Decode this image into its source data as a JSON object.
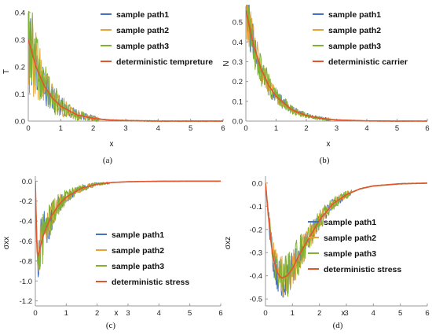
{
  "colors": {
    "sample_path1": "#4472c4",
    "sample_path2": "#e8a23a",
    "sample_path3": "#7fb133",
    "deterministic": "#e5542c",
    "axis": "#999999"
  },
  "chart_data": [
    {
      "type": "line",
      "caption": "(a)",
      "xlabel": "x",
      "ylabel": "T",
      "xlim": [
        0,
        6
      ],
      "ylim": [
        0,
        0.4
      ],
      "xticks": [
        "0",
        "1",
        "2",
        "3",
        "4",
        "5",
        "6"
      ],
      "yticks": [
        "0.0",
        "0.1",
        "0.2",
        "0.3",
        "0.4"
      ],
      "legend_position": "top-right",
      "deterministic": {
        "name": "deterministic tempreture",
        "a": 0.3,
        "k": 1.7,
        "x": [
          0.0,
          0.25,
          0.5,
          0.75,
          1.0,
          1.5,
          2.0,
          2.5,
          3.0,
          4.0,
          5.0,
          6.0
        ],
        "y": [
          0.3,
          0.196,
          0.128,
          0.084,
          0.055,
          0.023,
          0.01,
          0.004,
          0.002,
          0.0,
          0.0,
          0.0
        ]
      },
      "series": [
        {
          "name": "sample path1",
          "key": "sample_path1",
          "noise": 0.55,
          "xmax": 2.2,
          "seed": 11,
          "approximate": "noisy fluctuation around deterministic curve"
        },
        {
          "name": "sample path2",
          "key": "sample_path2",
          "noise": 0.6,
          "xmax": 2.2,
          "seed": 23,
          "approximate": "noisy fluctuation around deterministic curve"
        },
        {
          "name": "sample path3",
          "key": "sample_path3",
          "noise": 0.65,
          "xmax": 2.2,
          "seed": 37,
          "approximate": "noisy fluctuation around deterministic curve"
        }
      ]
    },
    {
      "type": "line",
      "caption": "(b)",
      "xlabel": "x",
      "ylabel": "N",
      "xlim": [
        0,
        6
      ],
      "ylim": [
        0,
        0.58
      ],
      "xticks": [
        "0",
        "1",
        "2",
        "3",
        "4",
        "5",
        "6"
      ],
      "yticks": [
        "0.0",
        "0.1",
        "0.2",
        "0.3",
        "0.4",
        "0.5"
      ],
      "legend_position": "top-right",
      "deterministic": {
        "name": "deterministic carrier",
        "a": 0.56,
        "k": 1.5,
        "x": [
          0.0,
          0.25,
          0.5,
          0.75,
          1.0,
          1.5,
          2.0,
          2.5,
          3.0,
          4.0,
          5.0,
          6.0
        ],
        "y": [
          0.56,
          0.385,
          0.265,
          0.182,
          0.125,
          0.059,
          0.028,
          0.013,
          0.006,
          0.001,
          0.0,
          0.0
        ]
      },
      "series": [
        {
          "name": "sample path1",
          "key": "sample_path1",
          "noise": 0.25,
          "xmax": 2.8,
          "seed": 41,
          "approximate": "noisy fluctuation around deterministic curve"
        },
        {
          "name": "sample path2",
          "key": "sample_path2",
          "noise": 0.25,
          "xmax": 2.8,
          "seed": 53,
          "approximate": "noisy fluctuation around deterministic curve"
        },
        {
          "name": "sample path3",
          "key": "sample_path3",
          "noise": 0.3,
          "xmax": 2.8,
          "seed": 67,
          "approximate": "noisy fluctuation around deterministic curve"
        }
      ]
    },
    {
      "type": "line",
      "caption": "(c)",
      "xlabel": "x",
      "ylabel": "σxx",
      "xlim": [
        0,
        6
      ],
      "ylim": [
        -1.25,
        0.05
      ],
      "xticks": [
        "0",
        "1",
        "2",
        "3",
        "4",
        "5",
        "6"
      ],
      "yticks": [
        "-1.2",
        "-1.0",
        "-0.8",
        "-0.6",
        "-0.4",
        "-0.2",
        "0.0"
      ],
      "legend_position": "bottom-right",
      "deterministic": {
        "name": "deterministic stress",
        "x": [
          0.0,
          0.05,
          0.1,
          0.25,
          0.5,
          0.75,
          1.0,
          1.5,
          2.0,
          2.5,
          3.0,
          4.0,
          5.0,
          6.0
        ],
        "y": [
          0.0,
          -0.7,
          -0.74,
          -0.55,
          -0.36,
          -0.24,
          -0.16,
          -0.07,
          -0.03,
          -0.013,
          -0.006,
          -0.001,
          0.0,
          0.0
        ]
      },
      "series": [
        {
          "name": "sample path1",
          "key": "sample_path1",
          "noise": 0.45,
          "xmax": 2.4,
          "seed": 71,
          "approximate": "noisy fluctuation around deterministic curve"
        },
        {
          "name": "sample path2",
          "key": "sample_path2",
          "noise": 0.4,
          "xmax": 2.4,
          "seed": 83,
          "approximate": "noisy fluctuation around deterministic curve"
        },
        {
          "name": "sample path3",
          "key": "sample_path3",
          "noise": 0.45,
          "xmax": 2.4,
          "seed": 97,
          "approximate": "noisy fluctuation around deterministic curve"
        }
      ]
    },
    {
      "type": "line",
      "caption": "(d)",
      "xlabel": "x",
      "ylabel": "σxz",
      "xlim": [
        0,
        6
      ],
      "ylim": [
        -0.53,
        0.03
      ],
      "xticks": [
        "0",
        "1",
        "2",
        "3",
        "4",
        "5",
        "6"
      ],
      "yticks": [
        "-0.5",
        "-0.4",
        "-0.3",
        "-0.2",
        "-0.1",
        "0.0"
      ],
      "legend_position": "right",
      "deterministic": {
        "name": "deterministic stress",
        "x": [
          0.0,
          0.1,
          0.2,
          0.3,
          0.45,
          0.6,
          0.8,
          1.0,
          1.25,
          1.5,
          2.0,
          2.5,
          3.0,
          3.5,
          4.0,
          5.0,
          6.0
        ],
        "y": [
          0.0,
          -0.13,
          -0.25,
          -0.33,
          -0.39,
          -0.41,
          -0.4,
          -0.37,
          -0.31,
          -0.26,
          -0.16,
          -0.09,
          -0.05,
          -0.025,
          -0.012,
          -0.003,
          0.0
        ]
      },
      "series": [
        {
          "name": "sample path1",
          "key": "sample_path1",
          "noise": 0.2,
          "xmax": 3.2,
          "seed": 101,
          "approximate": "noisy fluctuation around deterministic curve"
        },
        {
          "name": "sample path2",
          "key": "sample_path2",
          "noise": 0.22,
          "xmax": 3.2,
          "seed": 113,
          "approximate": "noisy fluctuation around deterministic curve"
        },
        {
          "name": "sample path3",
          "key": "sample_path3",
          "noise": 0.25,
          "xmax": 3.2,
          "seed": 127,
          "approximate": "noisy fluctuation around deterministic curve"
        }
      ]
    }
  ]
}
